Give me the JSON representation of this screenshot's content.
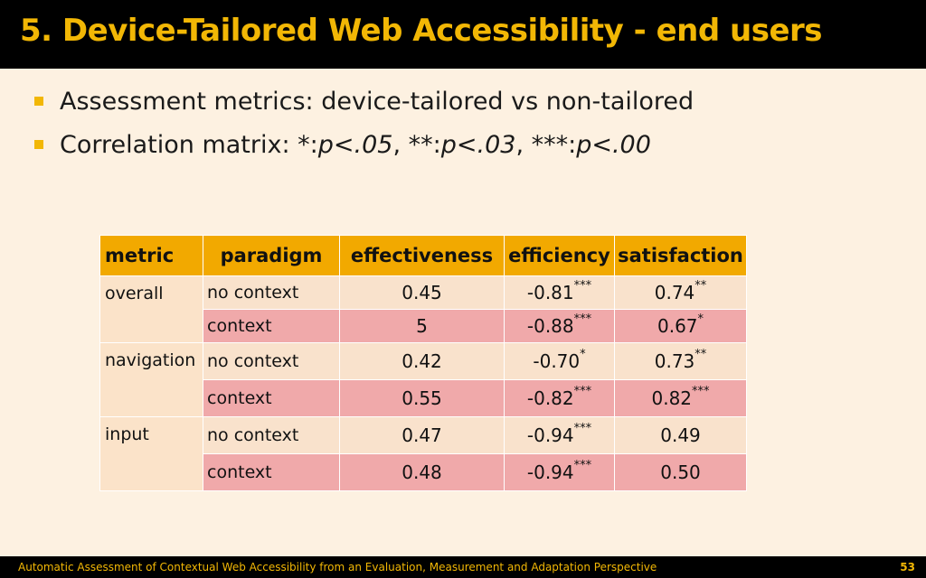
{
  "slide": {
    "title": "5. Device-Tailored Web Accessibility - end users",
    "bullets": {
      "b1": "Assessment metrics: device-tailored vs non-tailored",
      "b2_prefix": "Correlation matrix: *:",
      "b2_p1": "p<.05",
      "b2_sep1": ", **:",
      "b2_p2": "p<.03",
      "b2_sep2": ", ***:",
      "b2_p3": "p<.00"
    }
  },
  "table": {
    "headers": [
      "metric",
      "paradigm",
      "effectiveness",
      "efficiency",
      "satisfaction"
    ],
    "metrics": [
      "overall",
      "navigation",
      "input"
    ],
    "rows": [
      {
        "paradigm": "no context",
        "effectiveness": "0.45",
        "efficiency": "-0.81",
        "eff_sig": "***",
        "satisfaction": "0.74",
        "sat_sig": "**"
      },
      {
        "paradigm": "context",
        "effectiveness": "5",
        "efficiency": "-0.88",
        "eff_sig": "***",
        "satisfaction": "0.67",
        "sat_sig": "*"
      },
      {
        "paradigm": "no context",
        "effectiveness": "0.42",
        "efficiency": "-0.70",
        "eff_sig": "*",
        "satisfaction": "0.73",
        "sat_sig": "**"
      },
      {
        "paradigm": "context",
        "effectiveness": "0.55",
        "efficiency": "-0.82",
        "eff_sig": "***",
        "satisfaction": "0.82",
        "sat_sig": "***"
      },
      {
        "paradigm": "no context",
        "effectiveness": "0.47",
        "efficiency": "-0.94",
        "eff_sig": "***",
        "satisfaction": "0.49",
        "sat_sig": ""
      },
      {
        "paradigm": "context",
        "effectiveness": "0.48",
        "efficiency": "-0.94",
        "eff_sig": "***",
        "satisfaction": "0.50",
        "sat_sig": ""
      }
    ]
  },
  "footer": {
    "text": "Automatic Assessment of Contextual Web Accessibility from an Evaluation, Measurement and Adaptation Perspective",
    "page_number": "53"
  },
  "colors": {
    "accent": "#f2b705",
    "header_fill": "#f2a900",
    "no_context_fill": "#f9e2cc",
    "context_fill": "#f0a9aa",
    "background": "#fdf1e1"
  }
}
